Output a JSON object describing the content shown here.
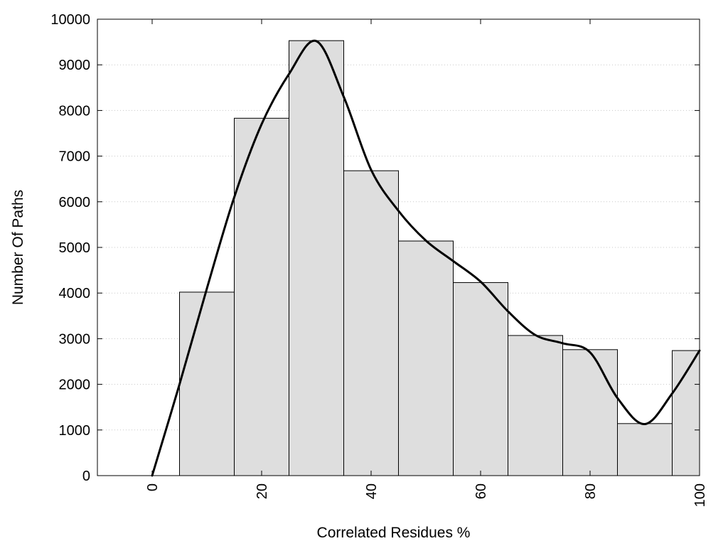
{
  "chart_data": {
    "type": "bar",
    "title": "",
    "xlabel": "Correlated Residues %",
    "ylabel": "Number Of Paths",
    "xlim": [
      -10,
      100
    ],
    "ylim": [
      0,
      10000
    ],
    "xticks": [
      0,
      20,
      40,
      60,
      80,
      100
    ],
    "yticks": [
      0,
      1000,
      2000,
      3000,
      4000,
      5000,
      6000,
      7000,
      8000,
      9000,
      10000
    ],
    "grid": "horizontal dotted",
    "bin_width": 10,
    "bins": [
      {
        "x": 10,
        "value": 4020
      },
      {
        "x": 20,
        "value": 7830
      },
      {
        "x": 30,
        "value": 9530
      },
      {
        "x": 40,
        "value": 6680
      },
      {
        "x": 50,
        "value": 5140
      },
      {
        "x": 60,
        "value": 4230
      },
      {
        "x": 70,
        "value": 3070
      },
      {
        "x": 80,
        "value": 2760
      },
      {
        "x": 90,
        "value": 1140
      },
      {
        "x": 100,
        "value": 2740
      }
    ],
    "curve": [
      {
        "x": 0,
        "y": 0
      },
      {
        "x": 5,
        "y": 2000
      },
      {
        "x": 10,
        "y": 4100
      },
      {
        "x": 15,
        "y": 6100
      },
      {
        "x": 20,
        "y": 7700
      },
      {
        "x": 25,
        "y": 8800
      },
      {
        "x": 30,
        "y": 9520
      },
      {
        "x": 35,
        "y": 8300
      },
      {
        "x": 40,
        "y": 6700
      },
      {
        "x": 45,
        "y": 5800
      },
      {
        "x": 50,
        "y": 5150
      },
      {
        "x": 55,
        "y": 4700
      },
      {
        "x": 60,
        "y": 4250
      },
      {
        "x": 65,
        "y": 3600
      },
      {
        "x": 70,
        "y": 3080
      },
      {
        "x": 75,
        "y": 2900
      },
      {
        "x": 80,
        "y": 2700
      },
      {
        "x": 85,
        "y": 1700
      },
      {
        "x": 90,
        "y": 1130
      },
      {
        "x": 95,
        "y": 1800
      },
      {
        "x": 100,
        "y": 2740
      }
    ]
  }
}
